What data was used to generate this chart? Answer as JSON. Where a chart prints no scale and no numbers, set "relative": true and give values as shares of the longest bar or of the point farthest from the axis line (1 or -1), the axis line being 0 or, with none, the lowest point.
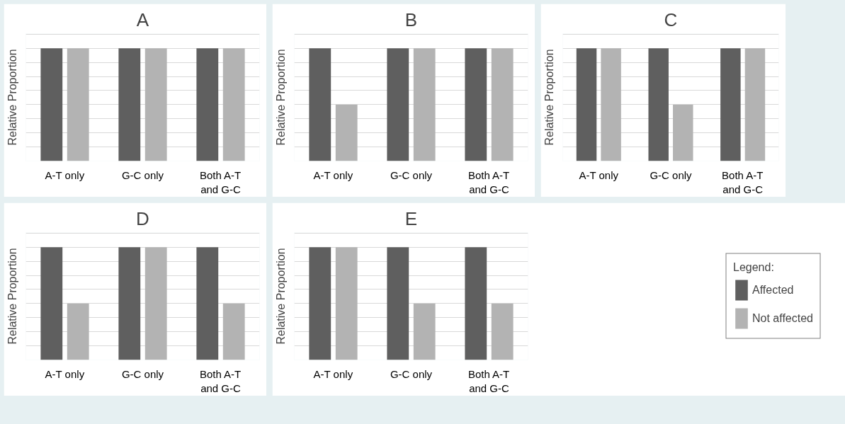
{
  "chart_data": [
    {
      "type": "bar",
      "title": "A",
      "ylabel": "Relative Proportion",
      "relative": true,
      "grid": "y",
      "categories": [
        "A-T only",
        "G-C only",
        "Both A-T and G-C"
      ],
      "series": [
        {
          "color": "#5f5f5f",
          "values": [
            1,
            1,
            1
          ]
        },
        {
          "color": "#b3b3b3",
          "values": [
            1,
            1,
            1
          ]
        }
      ]
    },
    {
      "type": "bar",
      "title": "B",
      "ylabel": "Relative Proportion",
      "relative": true,
      "grid": "y",
      "categories": [
        "A-T only",
        "G-C only",
        "Both A-T and G-C"
      ],
      "series": [
        {
          "color": "#5f5f5f",
          "values": [
            1,
            1,
            1
          ]
        },
        {
          "color": "#b3b3b3",
          "values": [
            0.5,
            1,
            1
          ]
        }
      ]
    },
    {
      "type": "bar",
      "title": "C",
      "ylabel": "Relative Proportion",
      "relative": true,
      "grid": "y",
      "categories": [
        "A-T only",
        "G-C only",
        "Both A-T and G-C"
      ],
      "series": [
        {
          "color": "#5f5f5f",
          "values": [
            1,
            1,
            1
          ]
        },
        {
          "color": "#b3b3b3",
          "values": [
            1,
            0.5,
            1
          ]
        }
      ]
    },
    {
      "type": "bar",
      "title": "D",
      "ylabel": "Relative Proportion",
      "relative": true,
      "grid": "y",
      "categories": [
        "A-T only",
        "G-C only",
        "Both A-T and G-C"
      ],
      "series": [
        {
          "color": "#5f5f5f",
          "values": [
            1,
            1,
            1
          ]
        },
        {
          "color": "#b3b3b3",
          "values": [
            0.5,
            1,
            0.5
          ]
        }
      ]
    },
    {
      "type": "bar",
      "title": "E",
      "ylabel": "Relative Proportion",
      "relative": true,
      "grid": "y",
      "legend": "right",
      "legend_title": "Legend:",
      "categories": [
        "A-T only",
        "G-C only",
        "Both A-T and G-C"
      ],
      "series": [
        {
          "name": "Affected",
          "color": "#5f5f5f",
          "values": [
            1,
            1,
            1
          ]
        },
        {
          "name": "Not affected",
          "color": "#b3b3b3",
          "values": [
            1,
            0.5,
            0.5
          ]
        }
      ]
    }
  ]
}
